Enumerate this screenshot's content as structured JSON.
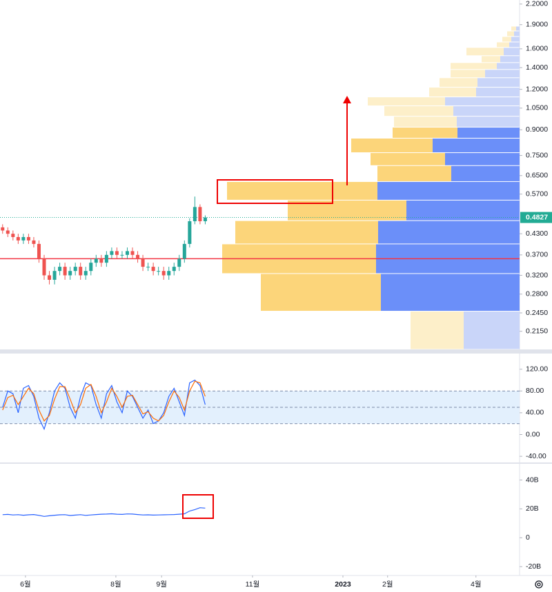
{
  "chart_data": [
    {
      "type": "candlestick",
      "log_scale": true,
      "ylim": [
        0.189,
        2.264
      ],
      "xlim": [
        0,
        100
      ],
      "yticks": [
        {
          "value": 2.2,
          "label": "2.2000"
        },
        {
          "value": 1.9,
          "label": "1.9000"
        },
        {
          "value": 1.6,
          "label": "1.6000"
        },
        {
          "value": 1.4,
          "label": "1.4000"
        },
        {
          "value": 1.2,
          "label": "1.2000"
        },
        {
          "value": 1.05,
          "label": "1.0500"
        },
        {
          "value": 0.9,
          "label": "0.9000"
        },
        {
          "value": 0.75,
          "label": "0.7500"
        },
        {
          "value": 0.65,
          "label": "0.6500"
        },
        {
          "value": 0.57,
          "label": "0.5700"
        },
        {
          "value": 0.43,
          "label": "0.4300"
        },
        {
          "value": 0.37,
          "label": "0.3700"
        },
        {
          "value": 0.32,
          "label": "0.3200"
        },
        {
          "value": 0.28,
          "label": "0.2800"
        },
        {
          "value": 0.245,
          "label": "0.2450"
        },
        {
          "value": 0.215,
          "label": "0.2150"
        }
      ],
      "last_price": 0.4827,
      "last_price_color": "#22ab94",
      "hline": 0.36,
      "hline_color": "#f23645",
      "up_color": "#26a69a",
      "down_color": "#ef5350",
      "open": [
        0.45,
        0.44,
        0.43,
        0.42,
        0.41,
        0.42,
        0.41,
        0.4,
        0.36,
        0.32,
        0.31,
        0.33,
        0.34,
        0.32,
        0.33,
        0.34,
        0.32,
        0.33,
        0.35,
        0.36,
        0.35,
        0.37,
        0.38,
        0.37,
        0.37,
        0.38,
        0.37,
        0.36,
        0.34,
        0.34,
        0.33,
        0.33,
        0.32,
        0.33,
        0.34,
        0.36,
        0.4,
        0.47,
        0.52,
        0.47
      ],
      "high": [
        0.46,
        0.45,
        0.44,
        0.43,
        0.43,
        0.43,
        0.42,
        0.41,
        0.37,
        0.33,
        0.34,
        0.35,
        0.35,
        0.34,
        0.35,
        0.35,
        0.34,
        0.36,
        0.37,
        0.37,
        0.38,
        0.39,
        0.39,
        0.38,
        0.39,
        0.39,
        0.38,
        0.37,
        0.35,
        0.35,
        0.34,
        0.34,
        0.34,
        0.35,
        0.37,
        0.41,
        0.48,
        0.56,
        0.53,
        0.49
      ],
      "low": [
        0.43,
        0.42,
        0.41,
        0.4,
        0.4,
        0.4,
        0.39,
        0.35,
        0.31,
        0.3,
        0.3,
        0.32,
        0.31,
        0.31,
        0.32,
        0.31,
        0.31,
        0.32,
        0.34,
        0.34,
        0.34,
        0.36,
        0.36,
        0.36,
        0.36,
        0.36,
        0.35,
        0.33,
        0.33,
        0.32,
        0.32,
        0.31,
        0.31,
        0.32,
        0.33,
        0.35,
        0.39,
        0.46,
        0.46,
        0.46
      ],
      "close": [
        0.44,
        0.43,
        0.42,
        0.41,
        0.42,
        0.41,
        0.4,
        0.36,
        0.32,
        0.31,
        0.33,
        0.34,
        0.32,
        0.33,
        0.34,
        0.32,
        0.33,
        0.35,
        0.36,
        0.35,
        0.37,
        0.38,
        0.37,
        0.37,
        0.38,
        0.37,
        0.36,
        0.34,
        0.34,
        0.33,
        0.33,
        0.32,
        0.33,
        0.34,
        0.36,
        0.4,
        0.47,
        0.52,
        0.47,
        0.4827
      ],
      "volume_profile": {
        "bins": [
          1.88,
          1.817,
          1.747,
          1.68,
          1.616,
          1.524,
          1.451,
          1.382,
          1.303,
          1.218,
          1.137,
          1.067,
          0.991,
          0.917,
          0.848,
          0.765,
          0.698,
          0.623,
          0.546,
          0.472,
          0.4,
          0.324,
          0.248,
          0.189
        ],
        "up": [
          7,
          10,
          13,
          18,
          54,
          27,
          67,
          50,
          55,
          68,
          112,
          100,
          91,
          94,
          118,
          108,
          107,
          218,
          172,
          207,
          223,
          174,
          77
        ],
        "down": [
          5,
          8,
          12,
          15,
          23,
          28,
          33,
          50,
          61,
          63,
          108,
          96,
          91,
          90,
          126,
          108,
          99,
          206,
          164,
          205,
          208,
          201,
          81
        ],
        "in_value_area": [
          false,
          false,
          false,
          false,
          false,
          false,
          false,
          false,
          false,
          false,
          false,
          false,
          false,
          true,
          true,
          true,
          true,
          true,
          true,
          true,
          true,
          true,
          false
        ],
        "colors": {
          "up": "#fcd57a",
          "down": "#6b8ff9",
          "up_faded": "#fdefc9",
          "down_faded": "#c9d5f9"
        }
      }
    },
    {
      "type": "line",
      "ylim": [
        -51.25,
        148.75
      ],
      "xlim": [
        0,
        100
      ],
      "yticks": [
        {
          "value": 120,
          "label": "120.00"
        },
        {
          "value": 80,
          "label": "80.00"
        },
        {
          "value": 40,
          "label": "40.00"
        },
        {
          "value": 0,
          "label": "0.00"
        },
        {
          "value": -40,
          "label": "-40.00"
        }
      ],
      "bands": [
        20,
        50,
        80
      ],
      "band_fill": "#e3f0fd",
      "band_color": "#7b8aa8",
      "series": [
        {
          "color": "#2962ff",
          "values": [
            50,
            80,
            75,
            40,
            85,
            90,
            70,
            30,
            10,
            40,
            80,
            95,
            85,
            50,
            30,
            70,
            95,
            90,
            55,
            30,
            75,
            90,
            60,
            40,
            80,
            70,
            50,
            30,
            45,
            20,
            25,
            40,
            70,
            85,
            60,
            35,
            95,
            100,
            90,
            55
          ]
        },
        {
          "color": "#ff6d00",
          "values": [
            45,
            68,
            72,
            55,
            70,
            85,
            75,
            45,
            25,
            35,
            65,
            88,
            88,
            65,
            40,
            55,
            85,
            92,
            70,
            40,
            60,
            85,
            70,
            50,
            70,
            72,
            55,
            38,
            42,
            30,
            25,
            35,
            60,
            80,
            68,
            45,
            80,
            98,
            95,
            70
          ]
        }
      ]
    },
    {
      "type": "line",
      "ylim": [
        -26.1,
        51.2
      ],
      "xlim": [
        0,
        100
      ],
      "yticks": [
        {
          "value": 40,
          "label": "40B"
        },
        {
          "value": 20,
          "label": "20B"
        },
        0,
        {
          "value": -20,
          "label": "-20B"
        }
      ],
      "xticks": [
        {
          "value": 4.9,
          "label": "6월"
        },
        {
          "value": 22.3,
          "label": "8월"
        },
        {
          "value": 31.1,
          "label": "9월"
        },
        {
          "value": 48.6,
          "label": "11월"
        },
        {
          "value": 66,
          "label": "2023"
        },
        {
          "value": 74.6,
          "label": "2월"
        },
        {
          "value": 91.6,
          "label": "4월"
        }
      ],
      "series": [
        {
          "color": "#2962ff",
          "values": [
            16,
            16.2,
            15.8,
            16,
            15.6,
            15.9,
            16.1,
            15.5,
            14.8,
            15.2,
            15.6,
            15.9,
            16,
            15.4,
            15.7,
            16,
            15.5,
            15.8,
            16.1,
            16.3,
            16.4,
            16.6,
            16.3,
            16.2,
            16.5,
            16.4,
            16.1,
            15.8,
            15.9,
            15.7,
            15.8,
            15.9,
            16,
            16.1,
            16.3,
            16.6,
            18.5,
            19.5,
            20.8,
            20.5
          ]
        }
      ]
    }
  ]
}
